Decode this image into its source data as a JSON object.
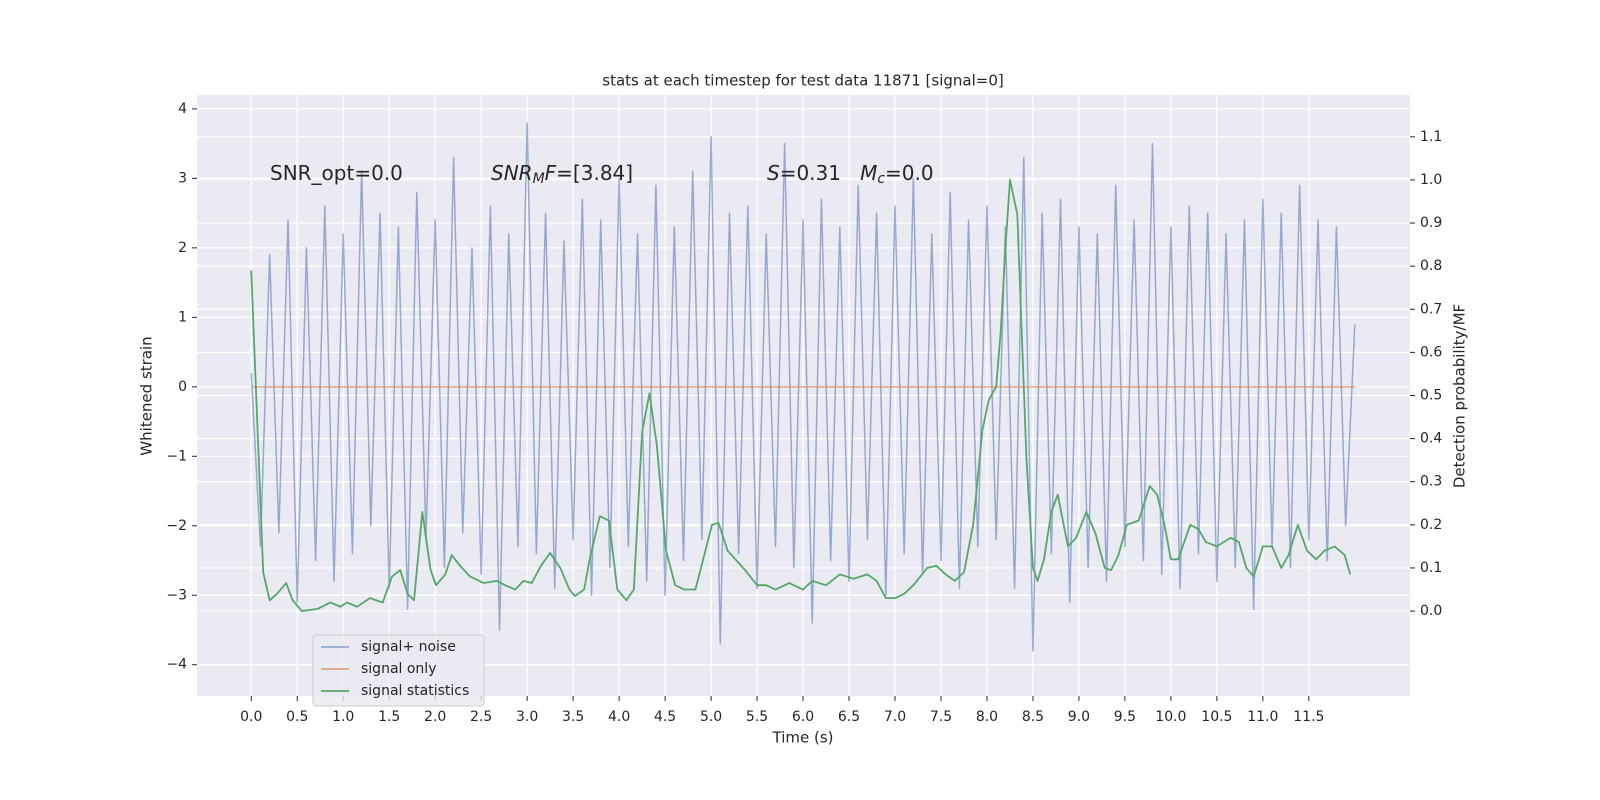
{
  "chart_data": {
    "type": "line",
    "title": "stats at each timestep for test data 11871 [signal=0]",
    "xlabel": "Time (s)",
    "ylabel": "Whitened strain",
    "y2label": "Detection probability/MF",
    "background": "#eaeaf2",
    "grid": true,
    "legend": "lower left",
    "xlim": [
      -0.59,
      12.6
    ],
    "ylim": [
      -4.45,
      4.2
    ],
    "y2lim": [
      -0.197,
      1.197
    ],
    "xticks": [
      {
        "value": 0,
        "label": "0.0"
      },
      0.5,
      {
        "value": 1,
        "label": "1.0"
      },
      1.5,
      {
        "value": 2,
        "label": "2.0"
      },
      2.5,
      {
        "value": 3,
        "label": "3.0"
      },
      3.5,
      {
        "value": 4,
        "label": "4.0"
      },
      4.5,
      {
        "value": 5,
        "label": "5.0"
      },
      5.5,
      {
        "value": 6,
        "label": "6.0"
      },
      6.5,
      {
        "value": 7,
        "label": "7.0"
      },
      7.5,
      {
        "value": 8,
        "label": "8.0"
      },
      8.5,
      {
        "value": 9,
        "label": "9.0"
      },
      9.5,
      {
        "value": 10,
        "label": "10.0"
      },
      10.5,
      {
        "value": 11,
        "label": "11.0"
      },
      11.5
    ],
    "yticks": [
      {
        "value": -4,
        "label": "−4"
      },
      {
        "value": -3,
        "label": "−3"
      },
      {
        "value": -2,
        "label": "−2"
      },
      {
        "value": -1,
        "label": "−1"
      },
      0,
      1,
      2,
      3,
      4
    ],
    "y2ticks": [
      {
        "value": 0,
        "label": "0.0"
      },
      0.1,
      0.2,
      0.3,
      0.4,
      0.5,
      0.6,
      0.7,
      0.8,
      0.9,
      {
        "value": 1,
        "label": "1.0"
      },
      1.1
    ],
    "annotations": [
      [
        {
          "text": "SNR_opt=0.0"
        }
      ],
      [
        {
          "text": "SNR",
          "italic": true
        },
        {
          "text": "M",
          "italic": true,
          "sub": true
        },
        {
          "text": "F",
          "italic": true
        },
        {
          "text": "=[3.84]"
        }
      ],
      [
        {
          "text": "S",
          "italic": true
        },
        {
          "text": "=0.31   "
        },
        {
          "text": "M",
          "italic": true
        },
        {
          "text": "c",
          "italic": true,
          "sub": true
        },
        {
          "text": "=0.0"
        }
      ]
    ],
    "series": [
      {
        "name": "signal+ noise",
        "color": "#4c72b0",
        "opacity": 0.55,
        "axis": "y",
        "x": [
          0,
          0.1,
          0.2,
          0.3,
          0.4,
          0.5,
          0.6,
          0.7,
          0.8,
          0.9,
          1,
          1.1,
          1.2,
          1.3,
          1.4,
          1.5,
          1.6,
          1.7,
          1.8,
          1.9,
          2,
          2.1,
          2.2,
          2.3,
          2.4,
          2.5,
          2.6,
          2.7,
          2.8,
          2.9,
          3,
          3.1,
          3.2,
          3.3,
          3.4,
          3.5,
          3.6,
          3.7,
          3.8,
          3.9,
          4,
          4.1,
          4.2,
          4.3,
          4.4,
          4.5,
          4.6,
          4.7,
          4.8,
          4.9,
          5,
          5.1,
          5.2,
          5.3,
          5.4,
          5.5,
          5.6,
          5.7,
          5.8,
          5.9,
          6,
          6.1,
          6.2,
          6.3,
          6.4,
          6.5,
          6.6,
          6.7,
          6.8,
          6.9,
          7,
          7.1,
          7.2,
          7.3,
          7.4,
          7.5,
          7.6,
          7.7,
          7.8,
          7.9,
          8,
          8.1,
          8.2,
          8.3,
          8.4,
          8.5,
          8.6,
          8.7,
          8.8,
          8.9,
          9,
          9.1,
          9.2,
          9.3,
          9.4,
          9.5,
          9.6,
          9.7,
          9.8,
          9.9,
          10,
          10.1,
          10.2,
          10.3,
          10.4,
          10.5,
          10.6,
          10.7,
          10.8,
          10.9,
          11,
          11.1,
          11.2,
          11.3,
          11.4,
          11.5,
          11.6,
          11.7,
          11.8,
          11.9,
          12
        ],
        "values": [
          0.2,
          -2.3,
          1.9,
          -2.1,
          2.4,
          -3.1,
          2.0,
          -2.5,
          2.6,
          -2.8,
          2.2,
          -2.4,
          3.1,
          -2.0,
          2.5,
          -2.9,
          2.3,
          -3.2,
          2.8,
          -2.2,
          2.4,
          -2.6,
          3.3,
          -2.1,
          2.0,
          -2.7,
          2.6,
          -3.5,
          2.2,
          -2.3,
          3.8,
          -2.4,
          2.5,
          -2.9,
          2.1,
          -2.2,
          2.7,
          -3.0,
          2.4,
          -2.6,
          3.0,
          -2.3,
          2.2,
          -2.8,
          2.9,
          -3.0,
          2.3,
          -2.5,
          3.1,
          -2.2,
          3.6,
          -3.7,
          2.5,
          -2.4,
          2.6,
          -2.9,
          2.2,
          -2.3,
          3.5,
          -2.6,
          2.4,
          -3.4,
          2.7,
          -2.5,
          2.3,
          -2.8,
          2.9,
          -2.2,
          2.5,
          -3.0,
          2.6,
          -2.4,
          3.0,
          -2.7,
          2.2,
          -2.5,
          2.8,
          -2.9,
          2.4,
          -2.3,
          2.6,
          -2.2,
          2.3,
          -2.9,
          3.3,
          -3.8,
          2.5,
          -2.4,
          2.7,
          -3.1,
          2.3,
          -2.6,
          2.2,
          -2.8,
          2.9,
          -2.3,
          2.4,
          -2.5,
          3.5,
          -2.7,
          2.3,
          -2.9,
          2.6,
          -2.4,
          2.5,
          -2.8,
          2.2,
          -2.6,
          2.4,
          -3.2,
          2.7,
          -2.3,
          2.5,
          -2.6,
          2.9,
          -2.2,
          2.4,
          -2.5,
          2.3,
          -2.0,
          0.9
        ]
      },
      {
        "name": "signal only",
        "color": "#dd8452",
        "opacity": 0.7,
        "axis": "y",
        "x": [
          0,
          12
        ],
        "values": [
          0,
          0
        ]
      },
      {
        "name": "signal statistics",
        "color": "#55a868",
        "opacity": 1,
        "axis": "y2",
        "x": [
          0,
          0.13,
          0.2,
          0.28,
          0.38,
          0.45,
          0.55,
          0.72,
          0.86,
          0.97,
          1.04,
          1.15,
          1.29,
          1.43,
          1.53,
          1.62,
          1.7,
          1.77,
          1.86,
          1.95,
          2.01,
          2.11,
          2.18,
          2.27,
          2.38,
          2.53,
          2.67,
          2.76,
          2.87,
          2.96,
          3.05,
          3.15,
          3.25,
          3.36,
          3.46,
          3.52,
          3.62,
          3.68,
          3.79,
          3.89,
          3.98,
          4.08,
          4.16,
          4.25,
          4.33,
          4.41,
          4.51,
          4.61,
          4.71,
          4.83,
          4.92,
          5.01,
          5.08,
          5.18,
          5.37,
          5.5,
          5.6,
          5.7,
          5.85,
          6.0,
          6.1,
          6.25,
          6.4,
          6.55,
          6.7,
          6.8,
          6.9,
          7.0,
          7.1,
          7.2,
          7.35,
          7.45,
          7.55,
          7.65,
          7.75,
          7.85,
          7.95,
          8.02,
          8.1,
          8.15,
          8.2,
          8.25,
          8.33,
          8.43,
          8.5,
          8.55,
          8.62,
          8.7,
          8.77,
          8.88,
          8.97,
          9.08,
          9.18,
          9.28,
          9.35,
          9.43,
          9.52,
          9.65,
          9.77,
          9.85,
          9.93,
          10.0,
          10.08,
          10.21,
          10.3,
          10.38,
          10.5,
          10.65,
          10.74,
          10.82,
          10.9,
          11.0,
          11.1,
          11.2,
          11.28,
          11.38,
          11.48,
          11.58,
          11.67,
          11.78,
          11.89,
          11.95
        ],
        "values": [
          0.79,
          0.09,
          0.025,
          0.04,
          0.065,
          0.025,
          0.0,
          0.005,
          0.02,
          0.01,
          0.02,
          0.01,
          0.03,
          0.02,
          0.08,
          0.095,
          0.04,
          0.025,
          0.23,
          0.095,
          0.06,
          0.085,
          0.13,
          0.105,
          0.08,
          0.065,
          0.07,
          0.06,
          0.05,
          0.07,
          0.065,
          0.105,
          0.135,
          0.1,
          0.05,
          0.035,
          0.05,
          0.12,
          0.22,
          0.21,
          0.05,
          0.025,
          0.05,
          0.415,
          0.505,
          0.385,
          0.14,
          0.06,
          0.05,
          0.05,
          0.125,
          0.2,
          0.205,
          0.14,
          0.095,
          0.06,
          0.06,
          0.05,
          0.065,
          0.05,
          0.07,
          0.06,
          0.085,
          0.075,
          0.085,
          0.07,
          0.03,
          0.03,
          0.04,
          0.06,
          0.1,
          0.105,
          0.085,
          0.07,
          0.09,
          0.2,
          0.42,
          0.49,
          0.52,
          0.65,
          0.84,
          1.0,
          0.92,
          0.35,
          0.1,
          0.07,
          0.12,
          0.23,
          0.27,
          0.15,
          0.17,
          0.23,
          0.18,
          0.1,
          0.095,
          0.13,
          0.2,
          0.21,
          0.29,
          0.27,
          0.2,
          0.12,
          0.12,
          0.2,
          0.19,
          0.16,
          0.15,
          0.17,
          0.16,
          0.1,
          0.08,
          0.15,
          0.15,
          0.1,
          0.13,
          0.2,
          0.14,
          0.12,
          0.14,
          0.15,
          0.13,
          0.085
        ]
      }
    ]
  }
}
